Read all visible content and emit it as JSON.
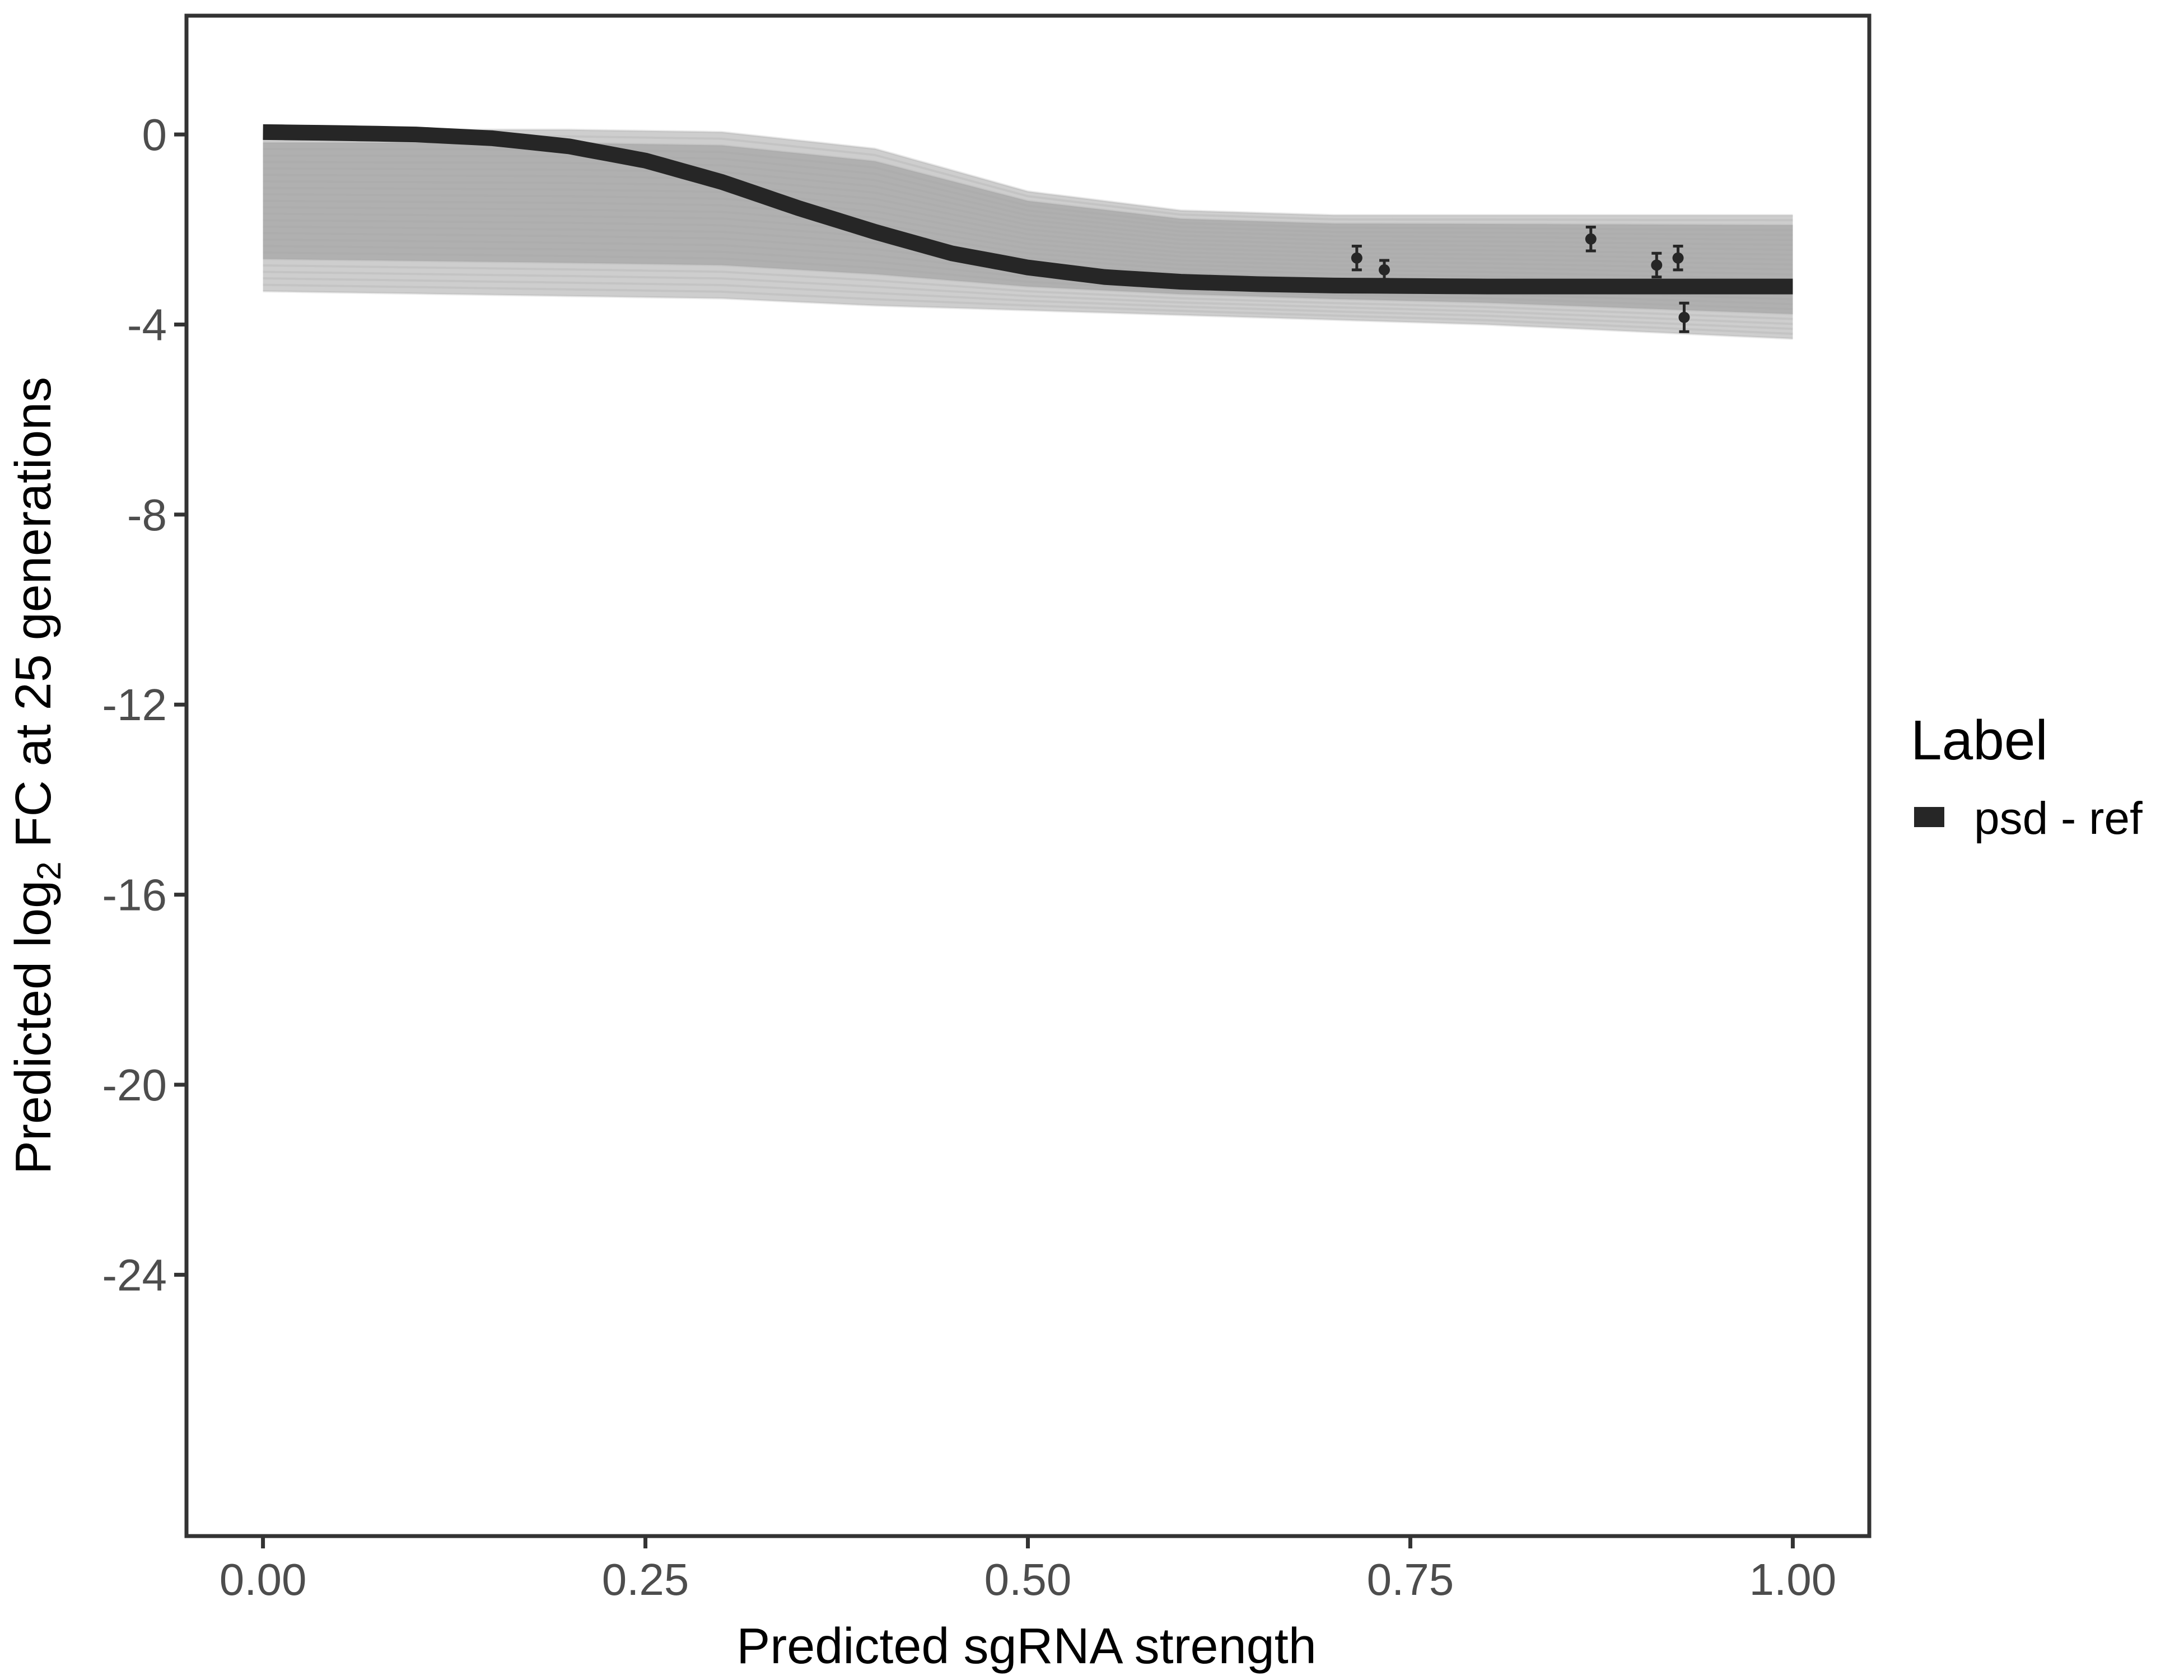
{
  "chart_data": {
    "type": "line",
    "title": "",
    "xlabel": "Predicted sgRNA strength",
    "ylabel": {
      "prefix": "Predicted  log",
      "subscript": "2",
      "suffix": " FC at 25 generations"
    },
    "xlim": [
      -0.05,
      1.05
    ],
    "ylim": [
      -29.5,
      2.5
    ],
    "x_ticks": [
      0,
      0.25,
      0.5,
      0.75,
      1
    ],
    "x_tick_labels": [
      "0.00",
      "0.25",
      "0.50",
      "0.75",
      "1.00"
    ],
    "y_ticks": [
      0,
      -4,
      -8,
      -12,
      -16,
      -20,
      -24
    ],
    "y_tick_labels": [
      "0",
      "-4",
      "-8",
      "-12",
      "-16",
      "-20",
      "-24"
    ],
    "grid": false,
    "legend": {
      "title": "Label",
      "placement": "right",
      "entries": [
        {
          "label": "psd - ref",
          "color": "#262626"
        }
      ]
    },
    "series": [
      {
        "name": "psd - ref",
        "kind": "fitted-curve",
        "color": "#262626",
        "x": [
          0,
          0.05,
          0.1,
          0.15,
          0.2,
          0.25,
          0.3,
          0.35,
          0.4,
          0.45,
          0.5,
          0.55,
          0.6,
          0.65,
          0.7,
          0.75,
          0.8,
          0.85,
          0.9,
          0.95,
          1.0
        ],
        "y": [
          0.05,
          0.03,
          0.0,
          -0.08,
          -0.25,
          -0.55,
          -1.0,
          -1.55,
          -2.05,
          -2.5,
          -2.8,
          -3.0,
          -3.1,
          -3.15,
          -3.18,
          -3.19,
          -3.2,
          -3.2,
          -3.2,
          -3.2,
          -3.2
        ]
      },
      {
        "kind": "posterior-draws-band",
        "color": "#a6a6a6",
        "x": [
          0,
          0.1,
          0.2,
          0.3,
          0.4,
          0.5,
          0.6,
          0.7,
          0.8,
          0.9,
          1.0
        ],
        "upper": [
          0.1,
          0.1,
          0.1,
          0.05,
          -0.3,
          -1.2,
          -1.6,
          -1.7,
          -1.7,
          -1.7,
          -1.7
        ],
        "lower": [
          -3.3,
          -3.35,
          -3.4,
          -3.45,
          -3.6,
          -3.7,
          -3.8,
          -3.9,
          -4.0,
          -4.15,
          -4.3
        ]
      },
      {
        "kind": "observed-points",
        "color": "#262626",
        "points": [
          {
            "x": 0.715,
            "y": -2.6,
            "ymin": -2.85,
            "ymax": -2.35
          },
          {
            "x": 0.733,
            "y": -2.85,
            "ymin": -3.05,
            "ymax": -2.65
          },
          {
            "x": 0.868,
            "y": -2.2,
            "ymin": -2.45,
            "ymax": -1.95
          },
          {
            "x": 0.911,
            "y": -2.75,
            "ymin": -3.0,
            "ymax": -2.5
          },
          {
            "x": 0.925,
            "y": -2.6,
            "ymin": -2.85,
            "ymax": -2.35
          },
          {
            "x": 0.929,
            "y": -3.85,
            "ymin": -4.15,
            "ymax": -3.55
          }
        ]
      }
    ]
  }
}
